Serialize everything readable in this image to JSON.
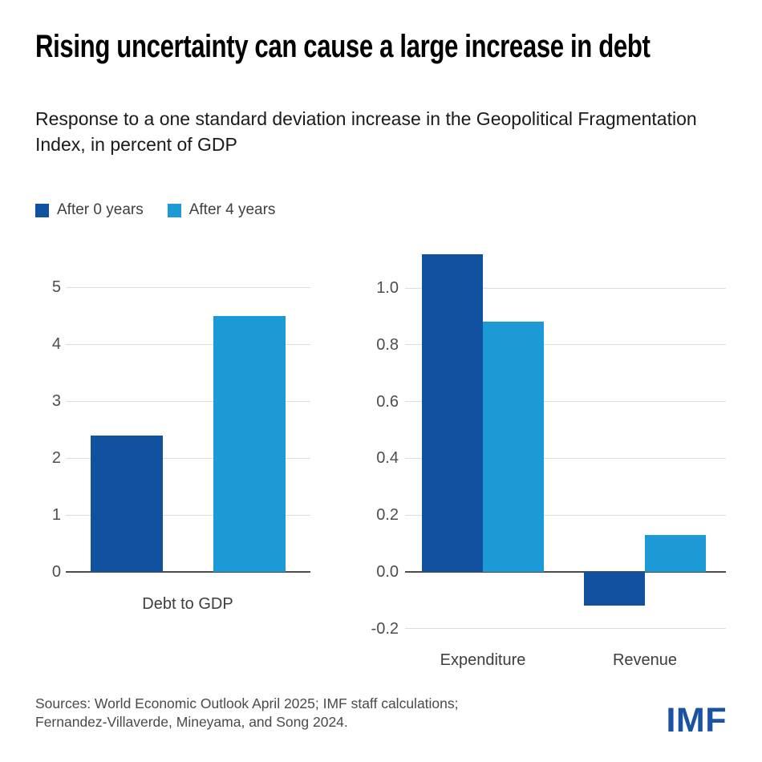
{
  "header": {
    "title": "Rising uncertainty can cause a large increase in debt",
    "subtitle": "Response to a one standard deviation increase in the Geopolitical Fragmentation Index, in percent of GDP"
  },
  "legend": {
    "position": "top-left",
    "items": [
      {
        "label": "After 0 years",
        "color": "#1152A0"
      },
      {
        "label": "After 4 years",
        "color": "#1C9AD6"
      }
    ]
  },
  "chart_data": [
    {
      "type": "bar",
      "title": "",
      "xlabel": "",
      "ylabel": "",
      "categories": [
        "Debt to GDP"
      ],
      "series": [
        {
          "name": "After 0 years",
          "color": "#1152A0",
          "values": [
            2.4
          ]
        },
        {
          "name": "After 4 years",
          "color": "#1C9AD6",
          "values": [
            4.5
          ]
        }
      ],
      "ylim": [
        0,
        5.3
      ],
      "yticks": [
        0,
        1,
        2,
        3,
        4,
        5
      ],
      "ytick_labels": [
        "0",
        "1",
        "2",
        "3",
        "4",
        "5"
      ],
      "grid": true
    },
    {
      "type": "bar",
      "title": "",
      "xlabel": "",
      "ylabel": "",
      "categories": [
        "Expenditure",
        "Revenue"
      ],
      "series": [
        {
          "name": "After 0 years",
          "color": "#1152A0",
          "values": [
            1.12,
            -0.12
          ]
        },
        {
          "name": "After 4 years",
          "color": "#1C9AD6",
          "values": [
            0.88,
            0.13
          ]
        }
      ],
      "ylim": [
        -0.25,
        1.15
      ],
      "yticks": [
        -0.2,
        0.0,
        0.2,
        0.4,
        0.6,
        0.8,
        1.0
      ],
      "ytick_labels": [
        "-0.2",
        "0.0",
        "0.2",
        "0.4",
        "0.6",
        "0.8",
        "1.0"
      ],
      "grid": true
    }
  ],
  "footer": {
    "sources_line1": "Sources: World Economic Outlook April 2025; IMF staff calculations;",
    "sources_line2": "Fernandez-Villaverde, Mineyama, and Song 2024.",
    "logo": "IMF",
    "logo_color": "#1A53A1"
  }
}
